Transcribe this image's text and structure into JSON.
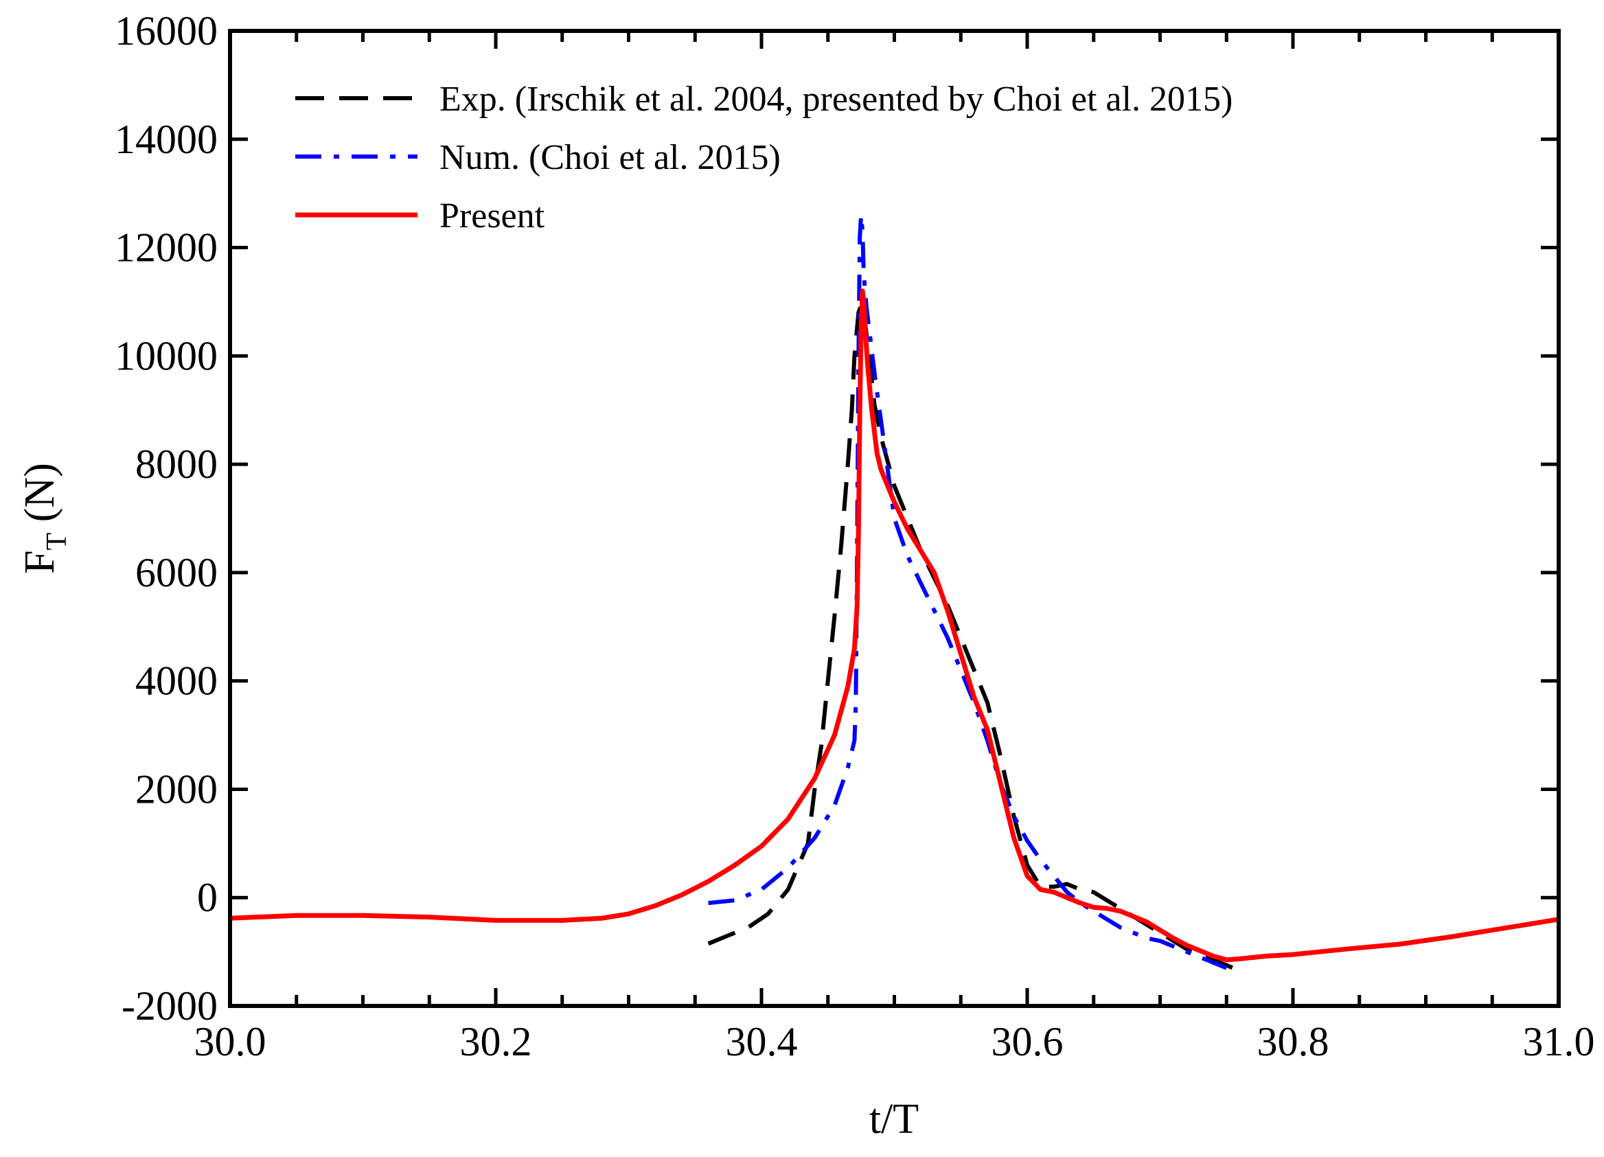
{
  "chart_data": {
    "type": "line",
    "title": "",
    "xlabel": "t/T",
    "ylabel": {
      "main": "F",
      "sub": "T",
      "unit": " (N)"
    },
    "xlim": [
      30.0,
      31.0
    ],
    "ylim": [
      -2000,
      16000
    ],
    "x_ticks": [
      30.0,
      30.2,
      30.4,
      30.6,
      30.8,
      31.0
    ],
    "x_tick_labels": [
      "30.0",
      "30.2",
      "30.4",
      "30.6",
      "30.8",
      "31.0"
    ],
    "y_ticks": [
      -2000,
      0,
      2000,
      4000,
      6000,
      8000,
      10000,
      12000,
      14000,
      16000
    ],
    "y_tick_labels": [
      "-2000",
      "0",
      "2000",
      "4000",
      "6000",
      "8000",
      "10000",
      "12000",
      "14000",
      "16000"
    ],
    "legend_position": "top-left",
    "grid": false,
    "series": [
      {
        "name": "Exp. (Irschik et al. 2004, presented by Choi et al. 2015)",
        "color": "#000000",
        "dash": "dashed",
        "x": [
          30.36,
          30.375,
          30.39,
          30.405,
          30.42,
          30.435,
          30.44,
          30.445,
          30.45,
          30.455,
          30.46,
          30.465,
          30.468,
          30.47,
          30.473,
          30.476,
          30.48,
          30.485,
          30.49,
          30.5,
          30.51,
          30.52,
          30.53,
          30.54,
          30.55,
          30.56,
          30.57,
          30.58,
          30.59,
          30.6,
          30.61,
          30.62,
          30.63,
          30.64,
          30.65,
          30.66,
          30.67,
          30.68,
          30.69,
          30.7,
          30.71,
          30.72,
          30.73,
          30.74,
          30.75,
          30.76
        ],
        "y": [
          -850,
          -700,
          -550,
          -300,
          150,
          1000,
          2000,
          2800,
          4000,
          5200,
          6500,
          8000,
          9000,
          10000,
          10800,
          11000,
          10200,
          9100,
          8500,
          7600,
          7000,
          6400,
          5900,
          5400,
          4800,
          4200,
          3600,
          2600,
          1500,
          600,
          200,
          200,
          250,
          150,
          100,
          -50,
          -200,
          -350,
          -500,
          -650,
          -800,
          -950,
          -1050,
          -1150,
          -1250,
          -1350
        ]
      },
      {
        "name": "Num. (Choi et al. 2015)",
        "color": "#0000ff",
        "dash": "dashdot",
        "x": [
          30.36,
          30.38,
          30.4,
          30.42,
          30.44,
          30.455,
          30.465,
          30.47,
          30.471,
          30.472,
          30.473,
          30.474,
          30.475,
          30.476,
          30.477,
          30.479,
          30.482,
          30.486,
          30.49,
          30.495,
          30.5,
          30.51,
          30.52,
          30.53,
          30.54,
          30.55,
          30.56,
          30.57,
          30.58,
          30.59,
          30.6,
          30.61,
          30.62,
          30.63,
          30.64,
          30.65,
          30.66,
          30.67,
          30.68,
          30.69,
          30.7,
          30.71,
          30.72,
          30.73,
          30.74,
          30.75
        ],
        "y": [
          -100,
          -50,
          150,
          550,
          1100,
          1700,
          2400,
          2900,
          3600,
          6500,
          10000,
          12200,
          12600,
          12300,
          11500,
          10900,
          10300,
          9500,
          8800,
          7900,
          7000,
          6300,
          5800,
          5300,
          4800,
          4200,
          3600,
          2900,
          2100,
          1500,
          1050,
          700,
          400,
          100,
          -100,
          -250,
          -400,
          -550,
          -650,
          -750,
          -800,
          -900,
          -1000,
          -1100,
          -1200,
          -1300
        ]
      },
      {
        "name": "Present",
        "color": "#ff0000",
        "dash": "solid",
        "x": [
          30.0,
          30.05,
          30.1,
          30.15,
          30.2,
          30.25,
          30.28,
          30.3,
          30.32,
          30.34,
          30.36,
          30.38,
          30.4,
          30.42,
          30.44,
          30.455,
          30.465,
          30.47,
          30.472,
          30.473,
          30.474,
          30.475,
          30.476,
          30.477,
          30.478,
          30.48,
          30.483,
          30.487,
          30.49,
          30.5,
          30.51,
          30.52,
          30.53,
          30.54,
          30.55,
          30.56,
          30.57,
          30.58,
          30.59,
          30.6,
          30.61,
          30.62,
          30.63,
          30.64,
          30.65,
          30.66,
          30.67,
          30.68,
          30.69,
          30.7,
          30.71,
          30.72,
          30.73,
          30.74,
          30.75,
          30.76,
          30.78,
          30.8,
          30.84,
          30.88,
          30.92,
          30.96,
          31.0
        ],
        "y": [
          -380,
          -330,
          -330,
          -360,
          -420,
          -420,
          -380,
          -300,
          -150,
          50,
          300,
          600,
          950,
          1450,
          2200,
          3000,
          3900,
          4600,
          5400,
          6800,
          9000,
          10500,
          11200,
          11000,
          10500,
          9800,
          9000,
          8200,
          7900,
          7300,
          6800,
          6400,
          6000,
          5300,
          4500,
          3700,
          3100,
          2100,
          1100,
          400,
          150,
          100,
          0,
          -100,
          -180,
          -200,
          -250,
          -350,
          -450,
          -600,
          -750,
          -880,
          -980,
          -1080,
          -1150,
          -1130,
          -1080,
          -1050,
          -950,
          -860,
          -720,
          -560,
          -400
        ]
      }
    ]
  }
}
